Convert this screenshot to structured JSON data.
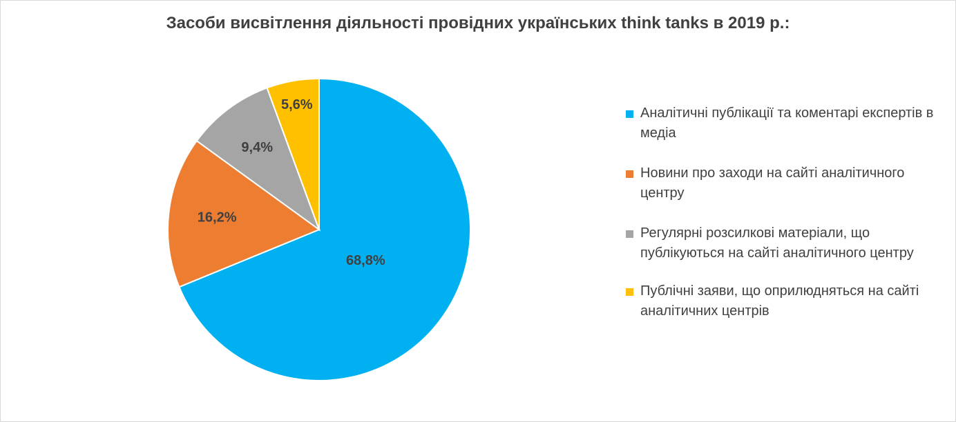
{
  "chart_data": {
    "type": "pie",
    "title": "Засоби висвітлення діяльності провідних українських think tanks в 2019 р.:",
    "categories": [
      "Аналітичні публікації та коментарі експертів в медіа",
      "Новини про заходи на сайті аналітичного центру",
      "Регулярні розсилкові матеріали, що публікуються на сайті аналітичного центру",
      "Публічні заяви, що оприлюдняться на сайті аналітичних центрів"
    ],
    "values": [
      68.8,
      16.2,
      9.4,
      5.6
    ],
    "labels": [
      "68,8%",
      "16,2%",
      "9,4%",
      "5,6%"
    ],
    "colors": [
      "#00B0F0",
      "#ED7D31",
      "#A5A5A5",
      "#FFC000"
    ],
    "legend_position": "right"
  }
}
